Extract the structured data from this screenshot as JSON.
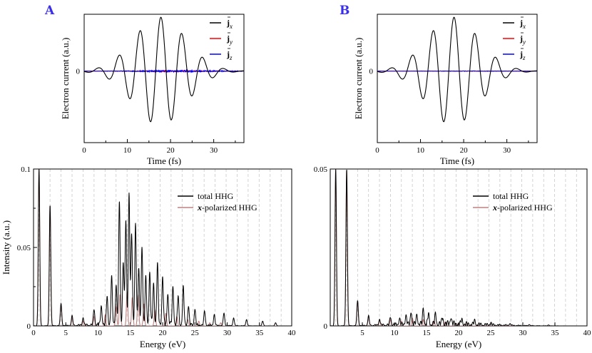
{
  "chart_data": [
    {
      "panel": "A",
      "type": "line",
      "xlabel": "Time (fs)",
      "ylabel": "Electron current (a.u.)",
      "xlim": [
        0,
        37
      ],
      "xticks": [
        "0",
        "10",
        "20",
        "30"
      ],
      "yticks": [
        "0"
      ],
      "grid": false,
      "legend_position": "top-right",
      "series": [
        {
          "name": "j_x",
          "legend_main": "j",
          "legend_sub": "x",
          "color": "#000000",
          "wave": {
            "period_fs": 4.85,
            "center_fs": 17.5,
            "width_fs": 8.5,
            "amplitude": 1.0,
            "noise": 0.0
          }
        },
        {
          "name": "j_y",
          "legend_main": "j",
          "legend_sub": "y",
          "color": "#ff0000",
          "wave": {
            "period_fs": 4.85,
            "center_fs": 17.5,
            "width_fs": 8.5,
            "amplitude": 0.0,
            "noise": 0.012
          }
        },
        {
          "name": "j_z",
          "legend_main": "j",
          "legend_sub": "z",
          "color": "#0000ff",
          "wave": {
            "period_fs": 4.85,
            "center_fs": 17.5,
            "width_fs": 8.5,
            "amplitude": 0.0,
            "noise": 0.018
          }
        }
      ]
    },
    {
      "panel": "B",
      "type": "line",
      "xlabel": "Time (fs)",
      "ylabel": "Electron current (a.u.)",
      "xlim": [
        0,
        37
      ],
      "xticks": [
        "0",
        "10",
        "20",
        "30"
      ],
      "yticks": [
        "0"
      ],
      "grid": false,
      "legend_position": "top-right",
      "series": [
        {
          "name": "j_x",
          "legend_main": "j",
          "legend_sub": "x",
          "color": "#000000",
          "wave": {
            "period_fs": 4.85,
            "center_fs": 17.5,
            "width_fs": 8.5,
            "amplitude": 1.0,
            "noise": 0.0
          }
        },
        {
          "name": "j_y",
          "legend_main": "j",
          "legend_sub": "y",
          "color": "#ff0000",
          "wave": {
            "period_fs": 4.85,
            "center_fs": 17.5,
            "width_fs": 8.5,
            "amplitude": 0.0,
            "noise": 0.004
          }
        },
        {
          "name": "j_z",
          "legend_main": "j",
          "legend_sub": "z",
          "color": "#0000ff",
          "wave": {
            "period_fs": 4.85,
            "center_fs": 17.5,
            "width_fs": 8.5,
            "amplitude": 0.0,
            "noise": 0.005
          }
        }
      ]
    },
    {
      "panel": "A",
      "type": "line",
      "xlabel": "Energy (eV)",
      "ylabel": "Intensity (a.u.)",
      "xlim": [
        0,
        40
      ],
      "ylim": [
        0,
        0.1
      ],
      "xticks": [
        "0",
        "5",
        "10",
        "15",
        "20",
        "25",
        "30",
        "35",
        "40"
      ],
      "yticks": [
        "0",
        "0.05",
        "0.1"
      ],
      "grid": "vertical dashed lines at harmonic orders",
      "harmonic_spacing_eV": 1.705,
      "legend_position": "top-right",
      "series": [
        {
          "name": "total HHG",
          "color": "#000000",
          "peaks": [
            [
              0.853,
              0.1
            ],
            [
              2.56,
              0.077
            ],
            [
              4.26,
              0.014
            ],
            [
              5.97,
              0.006
            ],
            [
              7.68,
              0.005
            ],
            [
              9.38,
              0.01
            ],
            [
              10.5,
              0.012
            ],
            [
              11.4,
              0.018
            ],
            [
              12.1,
              0.03
            ],
            [
              12.8,
              0.025
            ],
            [
              13.3,
              0.079
            ],
            [
              13.9,
              0.04
            ],
            [
              14.3,
              0.066
            ],
            [
              14.8,
              0.084
            ],
            [
              15.2,
              0.058
            ],
            [
              15.8,
              0.065
            ],
            [
              16.3,
              0.034
            ],
            [
              16.8,
              0.05
            ],
            [
              17.4,
              0.03
            ],
            [
              18.0,
              0.032
            ],
            [
              18.6,
              0.026
            ],
            [
              19.2,
              0.038
            ],
            [
              20.0,
              0.03
            ],
            [
              20.8,
              0.02
            ],
            [
              21.6,
              0.024
            ],
            [
              22.4,
              0.018
            ],
            [
              23.2,
              0.024
            ],
            [
              24.0,
              0.012
            ],
            [
              25.0,
              0.01
            ],
            [
              26.5,
              0.009
            ],
            [
              28.0,
              0.007
            ],
            [
              29.5,
              0.008
            ],
            [
              31.0,
              0.005
            ],
            [
              33.0,
              0.004
            ],
            [
              35.5,
              0.003
            ],
            [
              37.5,
              0.002
            ]
          ]
        },
        {
          "name": "x-polarized HHG",
          "legend_em": "x",
          "legend_rest": "-polarized HHG",
          "color": "#c08080",
          "peaks": [
            [
              0.853,
              0.1
            ],
            [
              2.56,
              0.077
            ],
            [
              4.26,
              0.014
            ],
            [
              5.97,
              0.005
            ],
            [
              7.68,
              0.003
            ],
            [
              9.38,
              0.006
            ],
            [
              11.1,
              0.007
            ],
            [
              12.8,
              0.012
            ],
            [
              13.4,
              0.02
            ],
            [
              14.5,
              0.022
            ],
            [
              15.3,
              0.018
            ],
            [
              16.2,
              0.02
            ],
            [
              17.1,
              0.014
            ],
            [
              18.8,
              0.01
            ],
            [
              20.5,
              0.008
            ],
            [
              22.2,
              0.006
            ],
            [
              23.9,
              0.004
            ],
            [
              25.6,
              0.003
            ],
            [
              27.3,
              0.002
            ],
            [
              29.0,
              0.002
            ]
          ]
        }
      ]
    },
    {
      "panel": "B",
      "type": "line",
      "xlabel": "Energy (eV)",
      "ylabel": "",
      "xlim": [
        0,
        40
      ],
      "ylim": [
        0,
        0.05
      ],
      "xticks": [
        "5",
        "10",
        "15",
        "20",
        "25",
        "30",
        "35",
        "40"
      ],
      "yticks": [
        "0",
        "0.05"
      ],
      "grid": "vertical dashed lines at harmonic orders",
      "harmonic_spacing_eV": 1.705,
      "legend_position": "top-right",
      "series": [
        {
          "name": "total HHG",
          "color": "#000000",
          "peaks": [
            [
              0.853,
              0.05
            ],
            [
              2.56,
              0.05
            ],
            [
              4.26,
              0.008
            ],
            [
              5.97,
              0.003
            ],
            [
              7.68,
              0.002
            ],
            [
              9.38,
              0.0025
            ],
            [
              10.8,
              0.002
            ],
            [
              11.8,
              0.003
            ],
            [
              12.6,
              0.004
            ],
            [
              13.5,
              0.003
            ],
            [
              14.5,
              0.005
            ],
            [
              15.3,
              0.003
            ],
            [
              16.4,
              0.003
            ],
            [
              17.5,
              0.002
            ],
            [
              18.8,
              0.0022
            ],
            [
              20.5,
              0.0015
            ],
            [
              22.5,
              0.0012
            ],
            [
              25.0,
              0.0008
            ],
            [
              28.0,
              0.0006
            ],
            [
              31.0,
              0.0004
            ],
            [
              34.0,
              0.0003
            ]
          ]
        },
        {
          "name": "x-polarized HHG",
          "legend_em": "x",
          "legend_rest": "-polarized HHG",
          "color": "#c08080",
          "peaks": [
            [
              0.853,
              0.05
            ],
            [
              2.56,
              0.05
            ],
            [
              4.26,
              0.008
            ],
            [
              5.97,
              0.003
            ],
            [
              7.68,
              0.0018
            ],
            [
              9.38,
              0.002
            ],
            [
              11.1,
              0.0015
            ],
            [
              12.8,
              0.0025
            ],
            [
              14.5,
              0.002
            ],
            [
              16.2,
              0.0015
            ],
            [
              17.9,
              0.0012
            ],
            [
              19.6,
              0.0008
            ],
            [
              21.3,
              0.0006
            ],
            [
              23.0,
              0.0004
            ]
          ]
        }
      ]
    }
  ]
}
